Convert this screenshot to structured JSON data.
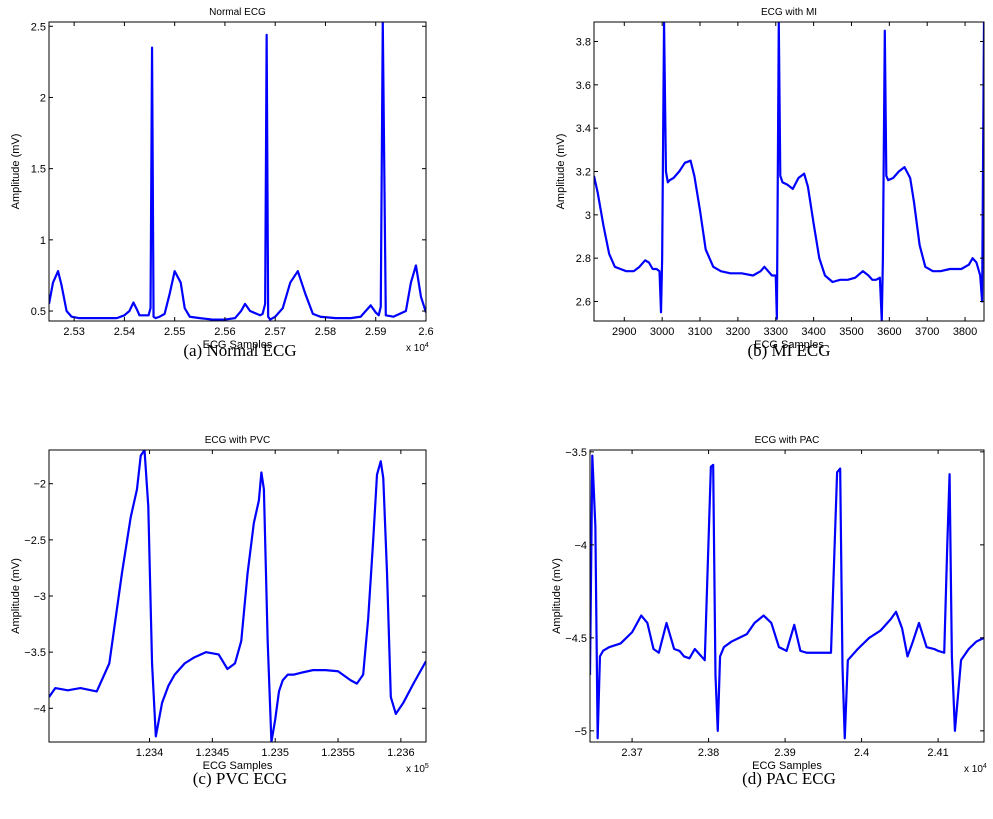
{
  "chart_data": [
    {
      "type": "line",
      "title": "Normal ECG",
      "xlabel": "ECG Samples",
      "ylabel": "Amplitude (mV)",
      "caption": "(a) Normal ECG",
      "xlim": [
        25250,
        26000
      ],
      "ylim": [
        0.43,
        2.53
      ],
      "xticks": [
        25300,
        25400,
        25500,
        25600,
        25700,
        25800,
        25900,
        26000
      ],
      "xtick_labels": [
        "2.53",
        "2.54",
        "2.55",
        "2.56",
        "2.57",
        "2.58",
        "2.59",
        "2.6"
      ],
      "yticks": [
        0.5,
        1,
        1.5,
        2,
        2.5
      ],
      "ytick_labels": [
        "0.5",
        "1",
        "1.5",
        "2",
        "2.5"
      ],
      "x_multiplier": "x 10^4",
      "series": [
        {
          "color": "#0000ff",
          "x": [
            25250,
            25258,
            25268,
            25275,
            25285,
            25295,
            25310,
            25330,
            25360,
            25385,
            25400,
            25410,
            25418,
            25425,
            25430,
            25440,
            25448,
            25452,
            25455,
            25458,
            25462,
            25470,
            25480,
            25490,
            25500,
            25512,
            25520,
            25530,
            25550,
            25575,
            25600,
            25620,
            25632,
            25640,
            25650,
            25670,
            25675,
            25680,
            25683,
            25686,
            25690,
            25700,
            25715,
            25730,
            25745,
            25760,
            25775,
            25790,
            25820,
            25850,
            25870,
            25880,
            25890,
            25900,
            25906,
            25910,
            25914,
            25920,
            25935,
            25960,
            25970,
            25980,
            25990,
            26000
          ],
          "y": [
            0.55,
            0.7,
            0.78,
            0.68,
            0.5,
            0.46,
            0.45,
            0.45,
            0.45,
            0.45,
            0.47,
            0.5,
            0.56,
            0.51,
            0.47,
            0.47,
            0.47,
            0.52,
            2.35,
            0.46,
            0.45,
            0.46,
            0.48,
            0.62,
            0.78,
            0.7,
            0.52,
            0.46,
            0.45,
            0.44,
            0.44,
            0.45,
            0.5,
            0.55,
            0.5,
            0.47,
            0.48,
            0.55,
            2.44,
            0.46,
            0.44,
            0.46,
            0.52,
            0.7,
            0.78,
            0.62,
            0.48,
            0.46,
            0.45,
            0.45,
            0.46,
            0.5,
            0.54,
            0.49,
            0.47,
            0.53,
            2.53,
            0.47,
            0.46,
            0.5,
            0.7,
            0.82,
            0.6,
            0.49
          ]
        }
      ]
    },
    {
      "type": "line",
      "title": "ECG with MI",
      "xlabel": "ECG Samples",
      "ylabel": "Amplitude (mV)",
      "caption": "(b) MI ECG",
      "xlim": [
        2820,
        3850
      ],
      "ylim": [
        2.51,
        3.89
      ],
      "xticks": [
        2900,
        3000,
        3100,
        3200,
        3300,
        3400,
        3500,
        3600,
        3700,
        3800
      ],
      "xtick_labels": [
        "2900",
        "3000",
        "3100",
        "3200",
        "3300",
        "3400",
        "3500",
        "3600",
        "3700",
        "3800"
      ],
      "yticks": [
        2.6,
        2.8,
        3,
        3.2,
        3.4,
        3.6,
        3.8
      ],
      "ytick_labels": [
        "2.6",
        "2.8",
        "3",
        "3.2",
        "3.4",
        "3.6",
        "3.8"
      ],
      "x_multiplier": "",
      "series": [
        {
          "color": "#0000ff",
          "x": [
            2820,
            2830,
            2845,
            2860,
            2875,
            2890,
            2905,
            2925,
            2940,
            2955,
            2965,
            2975,
            2985,
            2993,
            2997,
            3000,
            3005,
            3010,
            3015,
            3020,
            3030,
            3045,
            3060,
            3075,
            3085,
            3100,
            3115,
            3135,
            3155,
            3180,
            3210,
            3240,
            3260,
            3270,
            3280,
            3290,
            3300,
            3303,
            3308,
            3312,
            3318,
            3330,
            3345,
            3360,
            3375,
            3385,
            3400,
            3415,
            3430,
            3450,
            3470,
            3490,
            3510,
            3530,
            3545,
            3555,
            3565,
            3575,
            3580,
            3583,
            3588,
            3592,
            3597,
            3610,
            3625,
            3640,
            3655,
            3665,
            3680,
            3695,
            3715,
            3735,
            3760,
            3790,
            3810,
            3820,
            3830,
            3840,
            3845,
            3850
          ],
          "y": [
            3.18,
            3.1,
            2.95,
            2.82,
            2.76,
            2.75,
            2.74,
            2.74,
            2.76,
            2.79,
            2.78,
            2.75,
            2.75,
            2.74,
            2.55,
            2.8,
            3.89,
            3.2,
            3.15,
            3.16,
            3.17,
            3.2,
            3.24,
            3.25,
            3.18,
            3.02,
            2.84,
            2.76,
            2.74,
            2.73,
            2.73,
            2.72,
            2.74,
            2.76,
            2.74,
            2.72,
            2.72,
            2.52,
            3.89,
            3.18,
            3.15,
            3.14,
            3.12,
            3.17,
            3.19,
            3.13,
            2.96,
            2.8,
            2.72,
            2.69,
            2.7,
            2.7,
            2.71,
            2.74,
            2.72,
            2.7,
            2.7,
            2.71,
            2.51,
            2.8,
            3.85,
            3.18,
            3.16,
            3.17,
            3.2,
            3.22,
            3.17,
            3.06,
            2.86,
            2.76,
            2.74,
            2.74,
            2.75,
            2.75,
            2.77,
            2.8,
            2.78,
            2.72,
            2.6,
            3.89
          ]
        }
      ]
    },
    {
      "type": "line",
      "title": "ECG with PVC",
      "xlabel": "ECG Samples",
      "ylabel": "Amplitude (mV)",
      "caption": "(c) PVC ECG",
      "xlim": [
        123320,
        123620
      ],
      "ylim": [
        -4.3,
        -1.7
      ],
      "xticks": [
        123400,
        123450,
        123500,
        123550,
        123600
      ],
      "xtick_labels": [
        "1.234",
        "1.2345",
        "1.235",
        "1.2355",
        "1.236"
      ],
      "yticks": [
        -4,
        -3.5,
        -3,
        -2.5,
        -2
      ],
      "ytick_labels": [
        "−4",
        "−3.5",
        "−3",
        "−2.5",
        "−2"
      ],
      "x_multiplier": "x 10^5",
      "series": [
        {
          "color": "#0000ff",
          "x": [
            123320,
            123325,
            123335,
            123345,
            123358,
            123368,
            123378,
            123385,
            123390,
            123393,
            123396,
            123399,
            123402,
            123405,
            123410,
            123415,
            123420,
            123428,
            123435,
            123445,
            123455,
            123462,
            123468,
            123473,
            123478,
            123483,
            123487,
            123489,
            123491,
            123494,
            123497,
            123500,
            123503,
            123506,
            123510,
            123515,
            123522,
            123530,
            123540,
            123550,
            123560,
            123565,
            123570,
            123574,
            123578,
            123581,
            123584,
            123586,
            123589,
            123592,
            123596,
            123602,
            123610,
            123620
          ],
          "y": [
            -3.9,
            -3.82,
            -3.84,
            -3.82,
            -3.85,
            -3.6,
            -2.8,
            -2.3,
            -2.05,
            -1.75,
            -1.7,
            -2.2,
            -3.6,
            -4.25,
            -3.95,
            -3.8,
            -3.7,
            -3.6,
            -3.55,
            -3.5,
            -3.52,
            -3.65,
            -3.6,
            -3.4,
            -2.8,
            -2.35,
            -2.15,
            -1.9,
            -2.05,
            -3.4,
            -4.3,
            -4.1,
            -3.85,
            -3.75,
            -3.7,
            -3.7,
            -3.68,
            -3.66,
            -3.66,
            -3.67,
            -3.75,
            -3.78,
            -3.7,
            -3.2,
            -2.5,
            -1.92,
            -1.8,
            -1.95,
            -2.8,
            -3.9,
            -4.05,
            -3.95,
            -3.78,
            -3.58
          ]
        }
      ]
    },
    {
      "type": "line",
      "title": "ECG with PAC",
      "xlabel": "ECG Samples",
      "ylabel": "Amplitude (mV)",
      "caption": "(d) PAC ECG",
      "xlim": [
        23645,
        24160
      ],
      "ylim": [
        -5.06,
        -3.49
      ],
      "xticks": [
        23700,
        23800,
        23900,
        24000,
        24100
      ],
      "xtick_labels": [
        "2.37",
        "2.38",
        "2.39",
        "2.4",
        "2.41"
      ],
      "yticks": [
        -5,
        -4.5,
        -4,
        -3.5
      ],
      "ytick_labels": [
        "−5",
        "−4.5",
        "−4",
        "−3.5"
      ],
      "x_multiplier": "x 10^4",
      "series": [
        {
          "color": "#0000ff",
          "x": [
            23645,
            23648,
            23652,
            23655,
            23658,
            23662,
            23670,
            23685,
            23700,
            23712,
            23720,
            23728,
            23735,
            23745,
            23755,
            23762,
            23768,
            23775,
            23782,
            23795,
            23803,
            23806,
            23809,
            23812,
            23815,
            23820,
            23830,
            23840,
            23850,
            23860,
            23872,
            23882,
            23892,
            23902,
            23912,
            23920,
            23928,
            23935,
            23948,
            23960,
            23968,
            23972,
            23975,
            23978,
            23982,
            23995,
            24010,
            24025,
            24038,
            24045,
            24053,
            24060,
            24067,
            24075,
            24085,
            24095,
            24100,
            24108,
            24112,
            24115,
            24118,
            24122,
            24130,
            24140,
            24150,
            24160
          ],
          "y": [
            -4.7,
            -3.52,
            -3.9,
            -5.04,
            -4.6,
            -4.57,
            -4.55,
            -4.53,
            -4.47,
            -4.38,
            -4.42,
            -4.56,
            -4.58,
            -4.42,
            -4.56,
            -4.57,
            -4.6,
            -4.61,
            -4.56,
            -4.62,
            -3.58,
            -3.57,
            -4.7,
            -5.0,
            -4.6,
            -4.55,
            -4.52,
            -4.5,
            -4.48,
            -4.42,
            -4.38,
            -4.42,
            -4.55,
            -4.57,
            -4.43,
            -4.57,
            -4.58,
            -4.58,
            -4.58,
            -4.58,
            -3.61,
            -3.59,
            -4.65,
            -5.04,
            -4.62,
            -4.56,
            -4.5,
            -4.46,
            -4.4,
            -4.36,
            -4.45,
            -4.6,
            -4.52,
            -4.42,
            -4.55,
            -4.56,
            -4.57,
            -4.58,
            -4.0,
            -3.62,
            -4.6,
            -5.0,
            -4.62,
            -4.56,
            -4.52,
            -4.5
          ]
        }
      ]
    }
  ]
}
